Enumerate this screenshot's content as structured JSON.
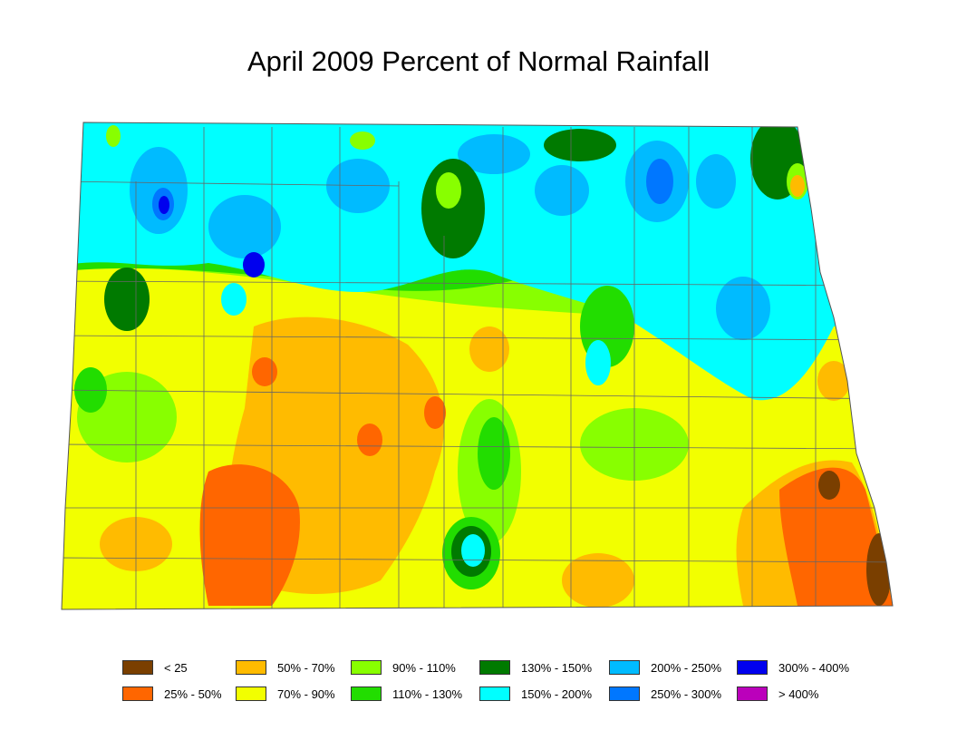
{
  "title": "April 2009 Percent of Normal Rainfall",
  "legend": [
    {
      "label": "< 25",
      "color": "#7a3f00"
    },
    {
      "label": "25% - 50%",
      "color": "#ff6600"
    },
    {
      "label": "50% - 70%",
      "color": "#ffbb00"
    },
    {
      "label": "70% - 90%",
      "color": "#f2ff00"
    },
    {
      "label": "90% - 110%",
      "color": "#88ff00"
    },
    {
      "label": "110% - 130%",
      "color": "#22dd00"
    },
    {
      "label": "130% - 150%",
      "color": "#007a00"
    },
    {
      "label": "150% - 200%",
      "color": "#00ffff"
    },
    {
      "label": "200% - 250%",
      "color": "#00bbff"
    },
    {
      "label": "250% - 300%",
      "color": "#0077ff"
    },
    {
      "label": "300% - 400%",
      "color": "#0000ee"
    },
    {
      "label": "> 400%",
      "color": "#bb00bb"
    }
  ]
}
